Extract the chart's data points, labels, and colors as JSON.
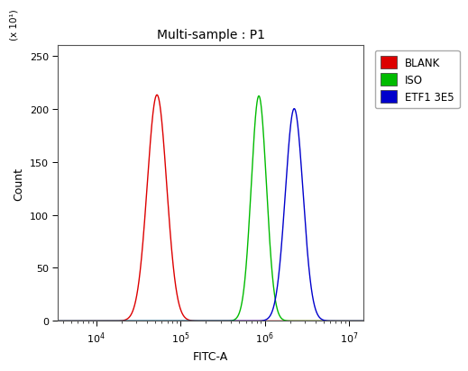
{
  "title": "Multi-sample : P1",
  "xlabel": "FITC-A",
  "ylabel": "Count",
  "y_scale_label": "(x 10¹)",
  "xlim_log": [
    3500,
    15000000
  ],
  "ylim": [
    0,
    260
  ],
  "yticks": [
    0,
    50,
    100,
    150,
    200,
    250
  ],
  "xticks_log": [
    10000,
    100000,
    1000000,
    10000000
  ],
  "background_color": "#ffffff",
  "plot_bg_color": "#ffffff",
  "series": [
    {
      "label": "BLANK",
      "color": "#dd0000",
      "mean_log": 4.72,
      "sigma_log": 0.115,
      "peak": 213
    },
    {
      "label": "ISO",
      "color": "#00bb00",
      "mean_log": 5.93,
      "sigma_log": 0.09,
      "peak": 212
    },
    {
      "label": "ETF1 3E5",
      "color": "#0000cc",
      "mean_log": 6.35,
      "sigma_log": 0.105,
      "peak": 200
    }
  ],
  "legend_colors": [
    "#dd0000",
    "#00bb00",
    "#0000cc"
  ],
  "legend_labels": [
    "BLANK",
    "ISO",
    "ETF1 3E5"
  ],
  "title_fontsize": 10,
  "axis_label_fontsize": 9,
  "tick_fontsize": 8,
  "legend_fontsize": 8.5
}
